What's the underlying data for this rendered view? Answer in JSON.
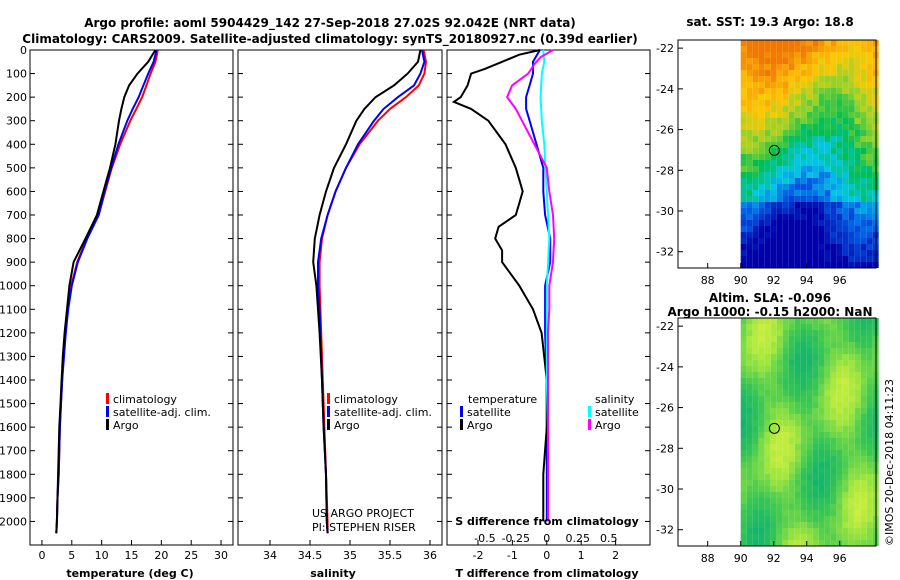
{
  "header": {
    "line1": "Argo profile: aoml 5904429_142 27-Sep-2018 27.02S 92.042E (NRT data)",
    "line2": "Climatology: CARS2009. Satellite-adjusted climatology: synTS_20180927.nc (0.39d earlier)"
  },
  "colors": {
    "climatology": "#ff0000",
    "satellite": "#0000ff",
    "argo": "#000000",
    "s_satellite": "#00ffff",
    "s_argo": "#ff00ff"
  },
  "credit": {
    "line1": "US ARGO PROJECT",
    "line2": "PI: STEPHEN RISER"
  },
  "stamp": "©IMOS 20-Dec-2018 04:11:23",
  "chart_data": [
    {
      "type": "line",
      "xlabel": "temperature (deg C)",
      "xlim": [
        -2,
        32
      ],
      "ylim": [
        2100,
        0
      ],
      "x_ticks": [
        0,
        5,
        10,
        15,
        20,
        25,
        30
      ],
      "y_ticks": [
        0,
        100,
        200,
        300,
        400,
        500,
        600,
        700,
        800,
        900,
        1000,
        1100,
        1200,
        1300,
        1400,
        1500,
        1600,
        1700,
        1800,
        1900,
        2000
      ],
      "legend": [
        "climatology",
        "satellite-adj. clim.",
        "Argo"
      ],
      "series": [
        {
          "name": "climatology",
          "depth": [
            0,
            50,
            100,
            150,
            200,
            250,
            300,
            400,
            500,
            600,
            700,
            800,
            900,
            1000,
            1100,
            1200,
            1300,
            1400,
            1500,
            1600,
            1700,
            1800,
            1900,
            2000,
            2050
          ],
          "values": [
            19.4,
            19.0,
            18.2,
            17.5,
            16.8,
            15.8,
            14.8,
            13.1,
            11.7,
            10.6,
            9.5,
            7.5,
            5.9,
            4.9,
            4.3,
            3.9,
            3.6,
            3.4,
            3.2,
            3.0,
            2.9,
            2.8,
            2.6,
            2.5,
            2.4
          ]
        },
        {
          "name": "satellite-adj. clim.",
          "depth": [
            0,
            50,
            100,
            150,
            200,
            250,
            300,
            400,
            500,
            600,
            700,
            800,
            900,
            1000,
            1100,
            1200,
            1300,
            1400,
            1500,
            1600,
            1700,
            1800,
            1900,
            2000,
            2050
          ],
          "values": [
            19.2,
            18.7,
            17.8,
            17.0,
            16.2,
            15.2,
            14.3,
            12.8,
            11.6,
            10.5,
            9.5,
            7.6,
            6.0,
            5.0,
            4.4,
            4.0,
            3.7,
            3.4,
            3.2,
            3.0,
            2.9,
            2.8,
            2.6,
            2.5,
            2.4
          ]
        },
        {
          "name": "Argo",
          "depth": [
            0,
            50,
            100,
            150,
            200,
            250,
            300,
            400,
            500,
            600,
            700,
            800,
            900,
            1000,
            1100,
            1200,
            1300,
            1400,
            1500,
            1600,
            1700,
            1800,
            1900,
            2000,
            2050
          ],
          "values": [
            19.0,
            17.8,
            16.0,
            14.6,
            13.8,
            13.3,
            12.9,
            12.3,
            11.4,
            10.3,
            9.2,
            7.3,
            5.3,
            4.6,
            4.2,
            3.8,
            3.5,
            3.3,
            3.1,
            2.9,
            2.8,
            2.7,
            2.6,
            2.5,
            2.4
          ]
        }
      ]
    },
    {
      "type": "line",
      "xlabel": "salinity",
      "xlim": [
        33.6,
        36.15
      ],
      "ylim": [
        2100,
        0
      ],
      "x_ticks": [
        34,
        34.5,
        35,
        35.5,
        36
      ],
      "legend": [
        "climatology",
        "satellite-adj. clim.",
        "Argo"
      ],
      "series": [
        {
          "name": "climatology",
          "depth": [
            0,
            50,
            100,
            150,
            200,
            250,
            300,
            400,
            500,
            600,
            700,
            800,
            900,
            1000,
            1100,
            1200,
            1400,
            1600,
            1800,
            2000,
            2050
          ],
          "values": [
            35.92,
            35.95,
            35.93,
            35.86,
            35.7,
            35.5,
            35.35,
            35.12,
            34.95,
            34.82,
            34.72,
            34.65,
            34.62,
            34.62,
            34.63,
            34.64,
            34.66,
            34.68,
            34.7,
            34.72,
            34.72
          ]
        },
        {
          "name": "satellite-adj. clim.",
          "depth": [
            0,
            50,
            100,
            150,
            200,
            250,
            300,
            400,
            500,
            600,
            700,
            800,
            900,
            1000,
            1100,
            1200,
            1400,
            1600,
            1800,
            2000,
            2050
          ],
          "values": [
            35.9,
            35.93,
            35.88,
            35.8,
            35.6,
            35.42,
            35.3,
            35.1,
            34.95,
            34.82,
            34.72,
            34.64,
            34.6,
            34.6,
            34.62,
            34.63,
            34.65,
            34.67,
            34.7,
            34.71,
            34.72
          ]
        },
        {
          "name": "Argo",
          "depth": [
            0,
            50,
            100,
            150,
            200,
            250,
            300,
            400,
            500,
            600,
            700,
            800,
            900,
            1000,
            1100,
            1200,
            1400,
            1600,
            1800,
            2000,
            2050
          ],
          "values": [
            35.88,
            35.85,
            35.72,
            35.55,
            35.32,
            35.18,
            35.08,
            34.95,
            34.8,
            34.7,
            34.62,
            34.56,
            34.54,
            34.58,
            34.6,
            34.62,
            34.65,
            34.67,
            34.7,
            34.71,
            34.72
          ]
        }
      ]
    },
    {
      "type": "line",
      "xlabel": "T difference from climatology",
      "title": "S difference from climatology",
      "xlim": [
        -2.9,
        3.0
      ],
      "ylim": [
        2100,
        0
      ],
      "x_ticks": [
        -2,
        -1,
        0,
        1,
        2
      ],
      "s_ticks": [
        -0.5,
        -0.25,
        0,
        0.25,
        0.5
      ],
      "s_tick_labels": [
        "-0.5",
        "-0.25",
        "0",
        "0.25",
        "0.5"
      ],
      "legend": {
        "temperature": [
          "satellite",
          "Argo"
        ],
        "salinity": [
          "satellite",
          "Argo"
        ]
      },
      "series": [
        {
          "name": "temperature satellite",
          "depth": [
            0,
            50,
            100,
            150,
            200,
            250,
            300,
            400,
            500,
            600,
            700,
            800,
            900,
            1000,
            1200,
            1400,
            1600,
            1800,
            2000
          ],
          "values": [
            -0.2,
            -0.4,
            -0.4,
            -0.5,
            -0.6,
            -0.6,
            -0.5,
            -0.3,
            -0.1,
            -0.1,
            -0.05,
            0.1,
            0.1,
            -0.05,
            -0.05,
            0,
            0,
            0,
            0
          ]
        },
        {
          "name": "temperature Argo",
          "depth": [
            0,
            20,
            50,
            80,
            100,
            150,
            200,
            220,
            250,
            300,
            400,
            500,
            600,
            650,
            700,
            750,
            800,
            850,
            900,
            1000,
            1100,
            1200,
            1400,
            1600,
            1800,
            2000
          ],
          "values": [
            -0.2,
            -0.8,
            -1.3,
            -1.8,
            -2.2,
            -2.3,
            -2.5,
            -2.7,
            -2.2,
            -1.7,
            -1.2,
            -0.9,
            -0.7,
            -0.8,
            -0.9,
            -1.4,
            -1.5,
            -1.3,
            -1.3,
            -0.8,
            -0.4,
            -0.15,
            0,
            0,
            -0.1,
            -0.1
          ]
        },
        {
          "name": "salinity satellite",
          "depth": [
            0,
            50,
            100,
            200,
            300,
            400,
            500,
            600,
            800,
            1000,
            1200,
            1400,
            1600,
            1800,
            2000
          ],
          "values": [
            -0.03,
            -0.02,
            -0.04,
            -0.05,
            -0.04,
            -0.02,
            -0.01,
            0,
            0.02,
            0,
            0,
            0,
            0.01,
            0.01,
            0.01
          ]
        },
        {
          "name": "salinity Argo",
          "depth": [
            0,
            30,
            60,
            100,
            150,
            200,
            250,
            300,
            400,
            500,
            600,
            700,
            800,
            900,
            1000,
            1100,
            1200,
            1400,
            1600,
            1800,
            2000
          ],
          "values": [
            0.05,
            -0.05,
            -0.1,
            -0.15,
            -0.28,
            -0.32,
            -0.25,
            -0.2,
            -0.1,
            0,
            0.02,
            0.05,
            0.06,
            0.05,
            0.02,
            0.02,
            0.01,
            0.01,
            0.01,
            0.01,
            0.01
          ]
        }
      ]
    },
    {
      "type": "heatmap",
      "title": "sat. SST: 19.3 Argo: 18.8",
      "xlim": [
        86.2,
        98.2
      ],
      "ylim": [
        -32.8,
        -21.6
      ],
      "x_ticks": [
        88,
        90,
        92,
        94,
        96
      ],
      "y_ticks": [
        -22,
        -24,
        -26,
        -28,
        -30,
        -32
      ],
      "argo_position": [
        92.04,
        -27.02
      ],
      "data_extent_lon": [
        90,
        98.2
      ]
    },
    {
      "type": "heatmap",
      "title": "Altim. SLA: -0.096",
      "subtitle": "Argo h1000: -0.15 h2000: NaN",
      "xlim": [
        86.2,
        98.2
      ],
      "ylim": [
        -32.8,
        -21.6
      ],
      "x_ticks": [
        88,
        90,
        92,
        94,
        96
      ],
      "y_ticks": [
        -22,
        -24,
        -26,
        -28,
        -30,
        -32
      ],
      "argo_position": [
        92.04,
        -27.02
      ],
      "data_extent_lon": [
        90,
        98.2
      ]
    }
  ]
}
